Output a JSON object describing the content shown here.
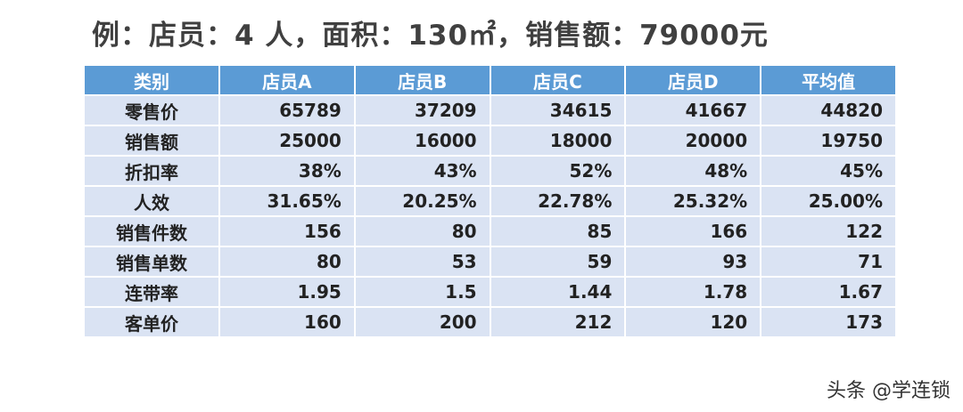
{
  "title": "例：店员：4 人，面积：130㎡，销售额：79000元",
  "chart_data": {
    "type": "table",
    "columns": [
      "类别",
      "店员A",
      "店员B",
      "店员C",
      "店员D",
      "平均值"
    ],
    "rows": [
      {
        "label": "零售价",
        "values": [
          "65789",
          "37209",
          "34615",
          "41667",
          "44820"
        ]
      },
      {
        "label": "销售额",
        "values": [
          "25000",
          "16000",
          "18000",
          "20000",
          "19750"
        ]
      },
      {
        "label": "折扣率",
        "values": [
          "38%",
          "43%",
          "52%",
          "48%",
          "45%"
        ]
      },
      {
        "label": "人效",
        "values": [
          "31.65%",
          "20.25%",
          "22.78%",
          "25.32%",
          "25.00%"
        ]
      },
      {
        "label": "销售件数",
        "values": [
          "156",
          "80",
          "85",
          "166",
          "122"
        ]
      },
      {
        "label": "销售单数",
        "values": [
          "80",
          "53",
          "59",
          "93",
          "71"
        ]
      },
      {
        "label": "连带率",
        "values": [
          "1.95",
          "1.5",
          "1.44",
          "1.78",
          "1.67"
        ]
      },
      {
        "label": "客单价",
        "values": [
          "160",
          "200",
          "212",
          "120",
          "173"
        ]
      }
    ]
  },
  "colors": {
    "header_bg": "#5b9bd5",
    "header_text": "#ffffff",
    "cell_bg": "#dae3f3",
    "title_text": "#404040"
  },
  "watermark": "头条 @学连锁"
}
